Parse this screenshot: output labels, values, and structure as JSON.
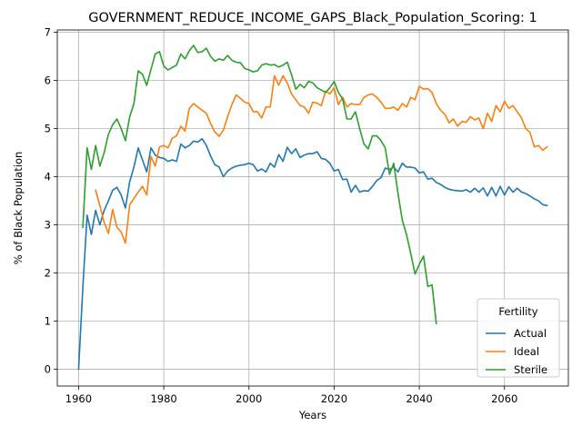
{
  "chart_data": {
    "type": "line",
    "title": "GOVERNMENT_REDUCE_INCOME_GAPS_Black_Population_Scoring: 1",
    "xlabel": "Years",
    "ylabel": "% of Black Population",
    "xlim": [
      1955,
      2075
    ],
    "ylim": [
      -0.35,
      7.05
    ],
    "xticks": [
      1960,
      1980,
      2000,
      2020,
      2040,
      2060
    ],
    "yticks": [
      0,
      1,
      2,
      3,
      4,
      5,
      6,
      7
    ],
    "grid": true,
    "legend": {
      "title": "Fertility",
      "placement": "lower-right"
    },
    "series": [
      {
        "name": "Actual",
        "color": "#1f77b4",
        "x": [
          1960,
          1961,
          1962,
          1963,
          1964,
          1965,
          1966,
          1967,
          1968,
          1969,
          1970,
          1971,
          1972,
          1973,
          1974,
          1975,
          1976,
          1977,
          1978,
          1979,
          1980,
          1981,
          1982,
          1983,
          1984,
          1985,
          1986,
          1987,
          1988,
          1989,
          1990,
          1991,
          1992,
          1993,
          1994,
          1995,
          1996,
          1997,
          1998,
          1999,
          2000,
          2001,
          2002,
          2003,
          2004,
          2005,
          2006,
          2007,
          2008,
          2009,
          2010,
          2011,
          2012,
          2013,
          2014,
          2015,
          2016,
          2017,
          2018,
          2019,
          2020,
          2021,
          2022,
          2023,
          2024,
          2025,
          2026,
          2027,
          2028,
          2029,
          2030,
          2031,
          2032,
          2033,
          2034,
          2035,
          2036,
          2037,
          2038,
          2039,
          2040,
          2041,
          2042,
          2043,
          2044,
          2045,
          2046,
          2047,
          2048,
          2049,
          2050,
          2051,
          2052,
          2053,
          2054,
          2055,
          2056,
          2057,
          2058,
          2059,
          2060,
          2061,
          2062,
          2063,
          2064,
          2065,
          2066,
          2067,
          2068,
          2069,
          2070
        ],
        "y": [
          0.0,
          1.7,
          3.2,
          2.8,
          3.3,
          3.0,
          3.3,
          3.5,
          3.72,
          3.78,
          3.62,
          3.35,
          3.9,
          4.2,
          4.6,
          4.35,
          4.1,
          4.6,
          4.45,
          4.4,
          4.38,
          4.32,
          4.35,
          4.32,
          4.68,
          4.6,
          4.65,
          4.74,
          4.72,
          4.79,
          4.65,
          4.43,
          4.25,
          4.2,
          4.0,
          4.12,
          4.18,
          4.22,
          4.24,
          4.25,
          4.28,
          4.25,
          4.12,
          4.16,
          4.1,
          4.28,
          4.2,
          4.46,
          4.32,
          4.61,
          4.48,
          4.58,
          4.4,
          4.45,
          4.48,
          4.48,
          4.52,
          4.38,
          4.36,
          4.28,
          4.12,
          4.15,
          3.94,
          3.95,
          3.68,
          3.82,
          3.68,
          3.71,
          3.7,
          3.8,
          3.92,
          3.98,
          4.18,
          4.15,
          4.2,
          4.1,
          4.28,
          4.2,
          4.2,
          4.18,
          4.08,
          4.1,
          3.95,
          3.97,
          3.88,
          3.84,
          3.78,
          3.74,
          3.72,
          3.71,
          3.7,
          3.73,
          3.68,
          3.76,
          3.68,
          3.77,
          3.6,
          3.78,
          3.6,
          3.8,
          3.62,
          3.79,
          3.68,
          3.76,
          3.68,
          3.65,
          3.6,
          3.54,
          3.5,
          3.42,
          3.4
        ]
      },
      {
        "name": "Ideal",
        "color": "#ff7f0e",
        "x": [
          1964,
          1965,
          1966,
          1967,
          1968,
          1969,
          1970,
          1971,
          1972,
          1973,
          1974,
          1975,
          1976,
          1977,
          1978,
          1979,
          1980,
          1981,
          1982,
          1983,
          1984,
          1985,
          1986,
          1987,
          1988,
          1989,
          1990,
          1991,
          1992,
          1993,
          1994,
          1995,
          1996,
          1997,
          1998,
          1999,
          2000,
          2001,
          2002,
          2003,
          2004,
          2005,
          2006,
          2007,
          2008,
          2009,
          2010,
          2011,
          2012,
          2013,
          2014,
          2015,
          2016,
          2017,
          2018,
          2019,
          2020,
          2021,
          2022,
          2023,
          2024,
          2025,
          2026,
          2027,
          2028,
          2029,
          2030,
          2031,
          2032,
          2033,
          2034,
          2035,
          2036,
          2037,
          2038,
          2039,
          2040,
          2041,
          2042,
          2043,
          2044,
          2045,
          2046,
          2047,
          2048,
          2049,
          2050,
          2051,
          2052,
          2053,
          2054,
          2055,
          2056,
          2057,
          2058,
          2059,
          2060,
          2061,
          2062,
          2063,
          2064,
          2065,
          2066,
          2067,
          2068,
          2069,
          2070
        ],
        "y": [
          3.72,
          3.4,
          3.05,
          2.82,
          3.32,
          2.95,
          2.85,
          2.62,
          3.42,
          3.55,
          3.68,
          3.8,
          3.62,
          4.42,
          4.22,
          4.62,
          4.65,
          4.6,
          4.8,
          4.85,
          5.05,
          4.95,
          5.42,
          5.52,
          5.45,
          5.38,
          5.32,
          5.1,
          4.93,
          4.84,
          4.97,
          5.25,
          5.5,
          5.7,
          5.63,
          5.55,
          5.52,
          5.35,
          5.35,
          5.22,
          5.45,
          5.45,
          6.1,
          5.9,
          6.1,
          5.95,
          5.72,
          5.6,
          5.48,
          5.45,
          5.32,
          5.55,
          5.53,
          5.48,
          5.78,
          5.72,
          5.85,
          5.5,
          5.65,
          5.45,
          5.52,
          5.5,
          5.5,
          5.65,
          5.7,
          5.72,
          5.65,
          5.55,
          5.42,
          5.42,
          5.45,
          5.38,
          5.52,
          5.45,
          5.65,
          5.6,
          5.88,
          5.82,
          5.83,
          5.75,
          5.52,
          5.38,
          5.3,
          5.12,
          5.2,
          5.05,
          5.15,
          5.13,
          5.25,
          5.18,
          5.22,
          5.0,
          5.32,
          5.15,
          5.48,
          5.35,
          5.57,
          5.42,
          5.48,
          5.35,
          5.22,
          5.0,
          4.92,
          4.62,
          4.65,
          4.55,
          4.62
        ]
      },
      {
        "name": "Sterile",
        "color": "#2ca02c",
        "x": [
          1961,
          1962,
          1963,
          1964,
          1965,
          1966,
          1967,
          1968,
          1969,
          1970,
          1971,
          1972,
          1973,
          1974,
          1975,
          1976,
          1977,
          1978,
          1979,
          1980,
          1981,
          1982,
          1983,
          1984,
          1985,
          1986,
          1987,
          1988,
          1989,
          1990,
          1991,
          1992,
          1993,
          1994,
          1995,
          1996,
          1997,
          1998,
          1999,
          2000,
          2001,
          2002,
          2003,
          2004,
          2005,
          2006,
          2007,
          2008,
          2009,
          2010,
          2011,
          2012,
          2013,
          2014,
          2015,
          2016,
          2017,
          2018,
          2019,
          2020,
          2021,
          2022,
          2023,
          2024,
          2025,
          2026,
          2027,
          2028,
          2029,
          2030,
          2031,
          2032,
          2033,
          2034,
          2035,
          2036,
          2037,
          2038,
          2039,
          2040,
          2041,
          2042,
          2043,
          2044
        ],
        "y": [
          2.95,
          4.6,
          4.15,
          4.65,
          4.22,
          4.5,
          4.88,
          5.08,
          5.2,
          5.0,
          4.75,
          5.25,
          5.52,
          6.2,
          6.13,
          5.9,
          6.23,
          6.55,
          6.6,
          6.3,
          6.22,
          6.27,
          6.32,
          6.55,
          6.45,
          6.62,
          6.73,
          6.58,
          6.6,
          6.67,
          6.5,
          6.4,
          6.45,
          6.42,
          6.52,
          6.42,
          6.38,
          6.37,
          6.25,
          6.22,
          6.18,
          6.2,
          6.32,
          6.35,
          6.32,
          6.33,
          6.28,
          6.32,
          6.38,
          6.12,
          5.82,
          5.92,
          5.85,
          5.98,
          5.95,
          5.85,
          5.8,
          5.75,
          5.85,
          5.98,
          5.75,
          5.62,
          5.2,
          5.2,
          5.35,
          5.0,
          4.68,
          4.58,
          4.85,
          4.85,
          4.75,
          4.6,
          4.05,
          4.28,
          3.65,
          3.1,
          2.8,
          2.4,
          1.98,
          2.18,
          2.35,
          1.72,
          1.75,
          0.95
        ]
      }
    ]
  }
}
